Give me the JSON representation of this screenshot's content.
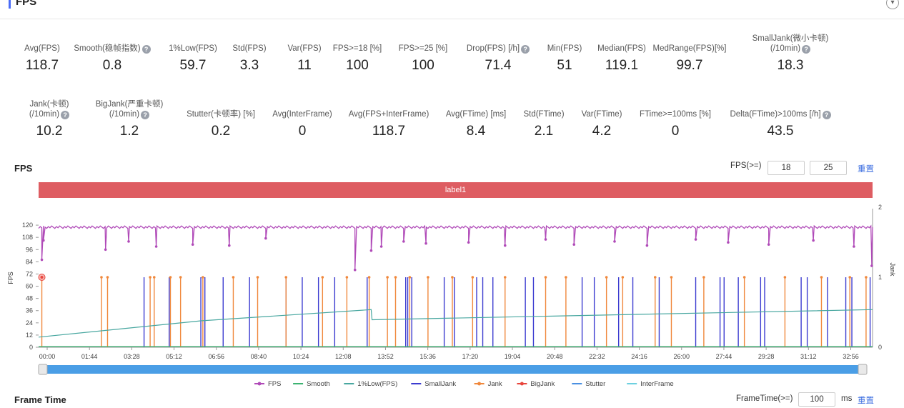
{
  "header": {
    "title": "FPS",
    "collapse_icon": "chevron-down-icon"
  },
  "metrics_row1": [
    {
      "label": "Avg(FPS)",
      "value": "118.7",
      "help": false
    },
    {
      "label": "Smooth(稳帧指数)",
      "value": "0.8",
      "help": true
    },
    {
      "label": "1%Low(FPS)",
      "value": "59.7",
      "help": false
    },
    {
      "label": "Std(FPS)",
      "value": "3.3",
      "help": false
    },
    {
      "label": "Var(FPS)",
      "value": "11",
      "help": false
    },
    {
      "label": "FPS>=18 [%]",
      "value": "100",
      "help": false
    },
    {
      "label": "FPS>=25 [%]",
      "value": "100",
      "help": false
    },
    {
      "label": "Drop(FPS) [/h]",
      "value": "71.4",
      "help": true
    },
    {
      "label": "Min(FPS)",
      "value": "51",
      "help": false
    },
    {
      "label": "Median(FPS)",
      "value": "119.1",
      "help": false
    },
    {
      "label": "MedRange(FPS)[%]",
      "value": "99.7",
      "help": false
    },
    {
      "label": "SmallJank(微小卡顿)",
      "label2": "(/10min)",
      "value": "18.3",
      "help": true
    }
  ],
  "metrics_row2": [
    {
      "label": "Jank(卡顿)",
      "label2": "(/10min)",
      "value": "10.2",
      "help": true
    },
    {
      "label": "BigJank(严重卡顿)",
      "label2": "(/10min)",
      "value": "1.2",
      "help": true
    },
    {
      "label": "Stutter(卡顿率) [%]",
      "value": "0.2",
      "help": false
    },
    {
      "label": "Avg(InterFrame)",
      "value": "0",
      "help": false
    },
    {
      "label": "Avg(FPS+InterFrame)",
      "value": "118.7",
      "help": false
    },
    {
      "label": "Avg(FTime) [ms]",
      "value": "8.4",
      "help": false
    },
    {
      "label": "Std(FTime)",
      "value": "2.1",
      "help": false
    },
    {
      "label": "Var(FTime)",
      "value": "4.2",
      "help": false
    },
    {
      "label": "FTime>=100ms [%]",
      "value": "0",
      "help": false
    },
    {
      "label": "Delta(FTime)>100ms [/h]",
      "value": "43.5",
      "help": true
    }
  ],
  "fps_section": {
    "title": "FPS",
    "threshold_label": "FPS(>=)",
    "threshold1": "18",
    "threshold2": "25",
    "reset": "重置",
    "label_bar": "label1"
  },
  "chart_data": {
    "type": "line",
    "ylabel": "FPS",
    "y2label": "Jank",
    "yticks": [
      "0",
      "12",
      "24",
      "36",
      "48",
      "60",
      "72",
      "84",
      "96",
      "108",
      "120"
    ],
    "ylim": [
      0,
      132
    ],
    "y2ticks": [
      "0",
      "1",
      "2"
    ],
    "y2lim": [
      0,
      2
    ],
    "xticks": [
      "00:00",
      "01:44",
      "03:28",
      "05:12",
      "06:56",
      "08:40",
      "10:24",
      "12:08",
      "13:52",
      "15:36",
      "17:20",
      "19:04",
      "20:48",
      "22:32",
      "24:16",
      "26:00",
      "27:44",
      "29:28",
      "31:12",
      "32:56"
    ],
    "xlim_seconds": [
      0,
      2056
    ],
    "fps_base": 118,
    "fps_drop_times": [
      8,
      12,
      165,
      222,
      290,
      380,
      470,
      560,
      780,
      820,
      845,
      900,
      955,
      1060,
      1150,
      1250,
      1320,
      1420,
      1500,
      1620,
      1700,
      1800,
      1910,
      2010,
      2054
    ],
    "fps_drop_values": [
      86,
      105,
      96,
      104,
      99,
      101,
      100,
      107,
      76,
      95,
      99,
      104,
      102,
      103,
      100,
      106,
      101,
      104,
      100,
      106,
      103,
      101,
      105,
      99,
      80
    ],
    "smooth_values": [
      0,
      0
    ],
    "low1_points": [
      [
        0,
        10
      ],
      [
        400,
        26
      ],
      [
        820,
        37
      ],
      [
        822,
        27
      ],
      [
        2056,
        37
      ]
    ],
    "smalljank_times": [
      260,
      322,
      400,
      410,
      455,
      520,
      610,
      650,
      690,
      730,
      810,
      905,
      910,
      920,
      1000,
      1025,
      1080,
      1095,
      1120,
      1200,
      1220,
      1340,
      1370,
      1430,
      1465,
      1530,
      1620,
      1680,
      1690,
      1725,
      1780,
      1790,
      1880,
      1895,
      1945,
      1990,
      2005,
      2050
    ],
    "jank_times": [
      8,
      155,
      170,
      275,
      285,
      325,
      350,
      405,
      480,
      540,
      610,
      700,
      760,
      815,
      860,
      880,
      915,
      960,
      1020,
      1070,
      1150,
      1250,
      1300,
      1400,
      1440,
      1520,
      1560,
      1640,
      1740,
      1840,
      1930,
      2000,
      2040
    ],
    "bigjank_times": [
      8
    ],
    "legend": [
      "FPS",
      "Smooth",
      "1%Low(FPS)",
      "SmallJank",
      "Jank",
      "BigJank",
      "Stutter",
      "InterFrame"
    ],
    "colors": {
      "FPS": "#b04ab8",
      "Smooth": "#3cb371",
      "1%Low(FPS)": "#48a7a0",
      "SmallJank": "#3b3bd0",
      "Jank": "#f0883c",
      "BigJank": "#e8453c",
      "Stutter": "#4a90e2",
      "InterFrame": "#6dd0e0"
    }
  },
  "frametime_section": {
    "title": "Frame Time",
    "threshold_label": "FrameTime(>=)",
    "threshold": "100",
    "unit": "ms",
    "reset": "重置"
  }
}
